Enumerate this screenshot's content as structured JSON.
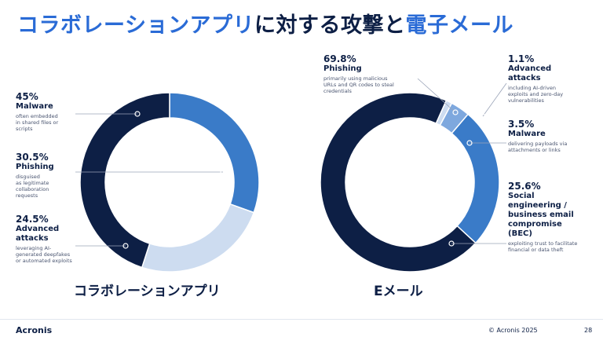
{
  "title": {
    "part1": "コラボレーションアプリ",
    "part2": "に対する攻撃と",
    "part3": "電子メール"
  },
  "chart_data": [
    {
      "type": "pie",
      "title": "コラボレーションアプリ",
      "slices": [
        {
          "name": "Malware",
          "pct_label": "45%",
          "value": 45,
          "desc": "often embedded\nin shared files or\nscripts",
          "color": "#0d1f45"
        },
        {
          "name": "Phishing",
          "pct_label": "30.5%",
          "value": 30.5,
          "desc": "disguised\nas legitimate\ncollaboration\nrequests",
          "color": "#3a7bc8"
        },
        {
          "name": "Advanced\nattacks",
          "pct_label": "24.5%",
          "value": 24.5,
          "desc": "leveraging AI-\ngenerated deepfakes\nor automated exploits",
          "color": "#cddcf0"
        }
      ]
    },
    {
      "type": "pie",
      "title": "Eメール",
      "slices": [
        {
          "name": "Phishing",
          "pct_label": "69.8%",
          "value": 69.8,
          "desc": "primarily using malicious\nURLs and QR codes to steal\ncredentials",
          "color": "#0d1f45"
        },
        {
          "name": "Advanced\nattacks",
          "pct_label": "1.1%",
          "value": 1.1,
          "desc": "including AI-driven\nexploits and zero-day\nvulnerabilities",
          "color": "#cddcf0"
        },
        {
          "name": "Malware",
          "pct_label": "3.5%",
          "value": 3.5,
          "desc": "delivering payloads via\nattachments or links",
          "color": "#7ea8de"
        },
        {
          "name": "Social\nengineering /\nbusiness email\ncompromise\n(BEC)",
          "pct_label": "25.6%",
          "value": 25.6,
          "desc": "exploiting trust to facilitate\nfinancial or data theft",
          "color": "#3a7bc8"
        }
      ]
    }
  ],
  "footer": {
    "logo": "Acronis",
    "copyright": "© Acronis 2025",
    "page": "28"
  }
}
